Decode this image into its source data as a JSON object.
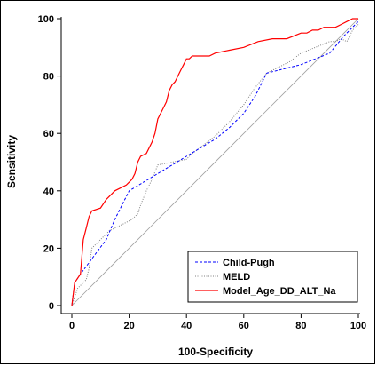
{
  "chart_data": {
    "type": "line",
    "xlabel": "100-Specificity",
    "ylabel": "Sensitivity",
    "xlim": [
      0,
      100
    ],
    "ylim": [
      0,
      100
    ],
    "xticks": [
      0,
      20,
      40,
      60,
      80,
      100
    ],
    "yticks": [
      0,
      20,
      40,
      60,
      80,
      100
    ],
    "legend_position": "bottom-right",
    "reference_line": {
      "x": [
        0,
        100
      ],
      "y": [
        0,
        100
      ],
      "color": "#a0a0a0"
    },
    "series": [
      {
        "name": "Child-Pugh",
        "color": "#0000ff",
        "style": "dashed",
        "x": [
          0,
          1,
          3,
          6,
          9,
          12,
          15,
          20,
          25,
          30,
          35,
          40,
          45,
          50,
          55,
          60,
          64,
          68,
          72,
          76,
          80,
          85,
          90,
          95,
          100
        ],
        "y": [
          0,
          8,
          11,
          15,
          19,
          23,
          30,
          40,
          43,
          46,
          49,
          52,
          55,
          58,
          62,
          67,
          73,
          81,
          82,
          83,
          84,
          86,
          88,
          94,
          99
        ]
      },
      {
        "name": "MELD",
        "color": "#808080",
        "style": "dotted",
        "x": [
          0,
          2,
          4,
          5,
          6,
          7,
          9,
          11,
          13,
          15,
          17,
          19,
          21,
          23,
          24,
          26,
          28,
          30,
          35,
          40,
          42,
          46,
          50,
          55,
          60,
          64,
          68,
          72,
          76,
          80,
          85,
          90,
          92,
          94,
          96,
          98,
          100
        ],
        "y": [
          0,
          6,
          8,
          9,
          13,
          20,
          22,
          24,
          26,
          27,
          28,
          29,
          30,
          32,
          35,
          40,
          44,
          49,
          50,
          51,
          53,
          56,
          59,
          64,
          70,
          76,
          81,
          83,
          85,
          88,
          90,
          92,
          92,
          93,
          92,
          96,
          98
        ]
      },
      {
        "name": "Model_Age_DD_ALT_Na",
        "color": "#ff0000",
        "style": "solid",
        "x": [
          0,
          1,
          3,
          4,
          5,
          6,
          7,
          10,
          12,
          13,
          15,
          17,
          19,
          20,
          21,
          22,
          23,
          24,
          26,
          27,
          28,
          29,
          30,
          31,
          32,
          33,
          34,
          35,
          36,
          37,
          38,
          39,
          40,
          41,
          42,
          44,
          46,
          48,
          50,
          55,
          60,
          65,
          70,
          75,
          80,
          82,
          84,
          86,
          88,
          90,
          92,
          94,
          96,
          98,
          100
        ],
        "y": [
          0,
          8,
          11,
          23,
          27,
          31,
          33,
          34,
          37,
          38,
          40,
          41,
          42,
          43,
          44,
          46,
          50,
          52,
          53,
          55,
          57,
          60,
          65,
          67,
          69,
          71,
          75,
          77,
          78,
          80,
          82,
          84,
          86,
          86,
          87,
          87,
          87,
          87,
          88,
          89,
          90,
          92,
          93,
          93,
          95,
          95,
          96,
          96,
          97,
          97,
          97,
          98,
          99,
          100,
          100
        ]
      }
    ]
  }
}
